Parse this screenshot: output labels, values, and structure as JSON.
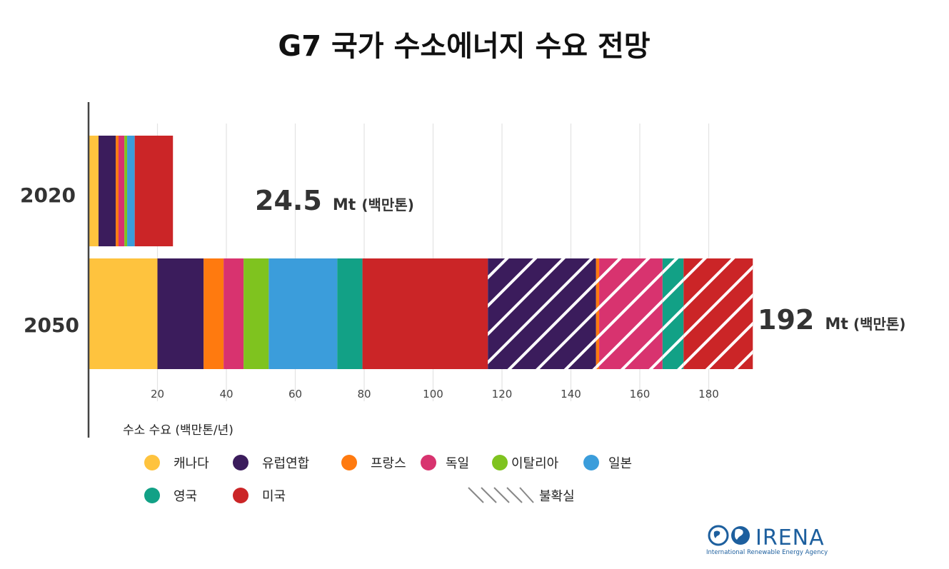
{
  "chart_data": {
    "type": "bar",
    "orientation": "horizontal",
    "stacked": true,
    "title": "G7 국가 수소에너지 수요 전망",
    "xlabel": "수소 수요 (백만톤/년)",
    "ylabel": "",
    "xlim": [
      0,
      200
    ],
    "xticks": [
      20,
      40,
      60,
      80,
      100,
      120,
      140,
      160,
      180
    ],
    "grid": true,
    "categories": [
      "2020",
      "2050"
    ],
    "series": [
      {
        "name": "캐나다",
        "color": "#fec33e",
        "values": [
          2.9,
          20.0
        ]
      },
      {
        "name": "유럽연합",
        "color": "#3b1c5c",
        "values": [
          5.0,
          13.4
        ]
      },
      {
        "name": "프랑스",
        "color": "#ff7a0f",
        "values": [
          0.8,
          5.8
        ]
      },
      {
        "name": "독일",
        "color": "#d8336f",
        "values": [
          1.7,
          5.8
        ]
      },
      {
        "name": "이탈리아",
        "color": "#7fc31f",
        "values": [
          0.8,
          7.3
        ]
      },
      {
        "name": "일본",
        "color": "#3b9ddb",
        "values": [
          2.2,
          19.9
        ]
      },
      {
        "name": "영국",
        "color": "#12a186",
        "values": [
          0.0,
          7.3
        ]
      },
      {
        "name": "미국",
        "color": "#cb2527",
        "values": [
          11.1,
          36.4
        ]
      },
      {
        "name": "유럽연합 (불확실)",
        "color": "#3b1c5c",
        "hatched": true,
        "values": [
          0,
          31.4
        ]
      },
      {
        "name": "프랑스 (불확실)",
        "color": "#ff7a0f",
        "hatched": true,
        "values": [
          0,
          0.9
        ]
      },
      {
        "name": "독일 (불확실)",
        "color": "#d8336f",
        "hatched": true,
        "values": [
          0,
          18.4
        ]
      },
      {
        "name": "영국 (불확실)",
        "color": "#12a186",
        "hatched": true,
        "values": [
          0,
          6.1
        ]
      },
      {
        "name": "미국 (불확실)",
        "color": "#cb2527",
        "hatched": true,
        "values": [
          0,
          20.1
        ]
      }
    ],
    "annotations": [
      {
        "category": "2020",
        "value": "24.5",
        "unit": "Mt",
        "unit_ko": "(백만톤)"
      },
      {
        "category": "2050",
        "value": "192",
        "unit": "Mt",
        "unit_ko": "(백만톤)"
      }
    ],
    "legend": [
      {
        "label": "캐나다",
        "color": "#fec33e"
      },
      {
        "label": "유럽연합",
        "color": "#3b1c5c"
      },
      {
        "label": "프랑스",
        "color": "#ff7a0f"
      },
      {
        "label": "독일",
        "color": "#d8336f"
      },
      {
        "label": "이탈리아",
        "color": "#7fc31f"
      },
      {
        "label": "일본",
        "color": "#3b9ddb"
      },
      {
        "label": "영국",
        "color": "#12a186"
      },
      {
        "label": "미국",
        "color": "#cb2527"
      }
    ],
    "uncertainty_label": "불확실"
  },
  "logo": {
    "name": "IRENA",
    "subtitle": "International Renewable Energy Agency"
  }
}
